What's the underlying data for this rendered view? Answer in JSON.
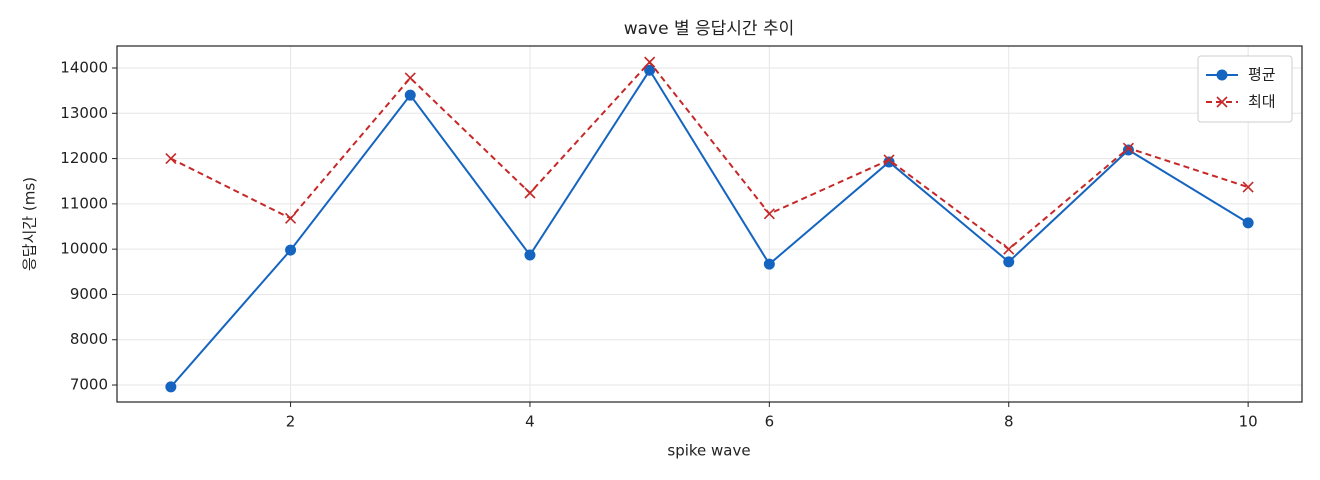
{
  "chart_data": {
    "type": "line",
    "title": "wave 별 응답시간 추이",
    "x_label": "spike wave",
    "y_label": "응답시간 (ms)",
    "x": [
      1,
      2,
      3,
      4,
      5,
      6,
      7,
      8,
      9,
      10
    ],
    "series": [
      {
        "name": "평균",
        "color": "#1565c0",
        "marker": "circle",
        "dash": false,
        "values": [
          6960,
          9980,
          13400,
          9870,
          13950,
          9670,
          11925,
          9720,
          12190,
          10580
        ]
      },
      {
        "name": "최대",
        "color": "#c62828",
        "marker": "x",
        "dash": true,
        "values": [
          12000,
          10680,
          13780,
          11240,
          14130,
          10780,
          11970,
          10000,
          12230,
          11370
        ]
      }
    ],
    "xlim": [
      0.55,
      10.45
    ],
    "xticks": [
      2,
      4,
      6,
      8,
      10
    ],
    "ylim": [
      6625,
      14486
    ],
    "yticks": [
      7000,
      8000,
      9000,
      10000,
      11000,
      12000,
      13000,
      14000
    ],
    "grid": true,
    "legend": "upper right"
  }
}
